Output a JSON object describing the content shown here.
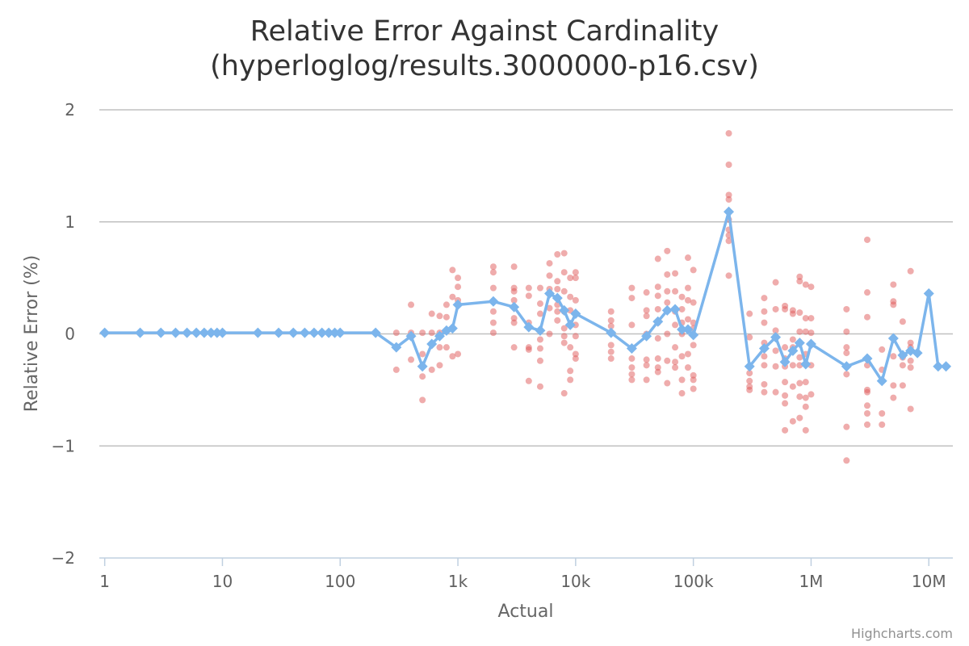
{
  "chart_data": {
    "type": "scatter",
    "title": "Relative Error Against Cardinality",
    "subtitle": "(hyperloglog/results.3000000-p16.csv)",
    "xlabel": "Actual",
    "ylabel": "Relative Error (%)",
    "x_scale": "log",
    "xlim": [
      0.9,
      16000000
    ],
    "ylim": [
      -2,
      2
    ],
    "grid": true,
    "credits": "Highcharts.com",
    "x_ticks": [
      {
        "value": 1,
        "label": "1"
      },
      {
        "value": 10,
        "label": "10"
      },
      {
        "value": 100,
        "label": "100"
      },
      {
        "value": 1000,
        "label": "1k"
      },
      {
        "value": 10000,
        "label": "10k"
      },
      {
        "value": 100000,
        "label": "100k"
      },
      {
        "value": 1000000,
        "label": "1M"
      },
      {
        "value": 10000000,
        "label": "10M"
      }
    ],
    "y_ticks": [
      {
        "value": 2,
        "label": "2"
      },
      {
        "value": 1,
        "label": "1"
      },
      {
        "value": 0,
        "label": "0"
      },
      {
        "value": -1,
        "label": "−1"
      },
      {
        "value": -2,
        "label": "−2"
      }
    ],
    "colors": {
      "scatter": "#e05a5a",
      "mean_line": "#7cb5ec",
      "grid": "#c0c0c0",
      "axis": "#c0d0e0"
    },
    "series": [
      {
        "kind": "mean",
        "x": [
          1,
          2,
          3,
          4,
          5,
          6,
          7,
          8,
          9,
          10,
          20,
          30,
          40,
          50,
          60,
          70,
          80,
          90,
          100,
          200,
          300,
          400,
          500,
          600,
          700,
          800,
          900,
          1000,
          2000,
          3000,
          4000,
          5000,
          6000,
          7000,
          8000,
          9000,
          10000,
          20000,
          30000,
          40000,
          50000,
          60000,
          70000,
          80000,
          90000,
          100000,
          200000,
          300000,
          400000,
          500000,
          600000,
          700000,
          800000,
          900000,
          1000000,
          2000000,
          3000000,
          4000000,
          5000000,
          6000000,
          7000000,
          8000000,
          10000000,
          12000000,
          14000000
        ],
        "y": [
          0.01,
          0.01,
          0.01,
          0.01,
          0.01,
          0.01,
          0.01,
          0.01,
          0.01,
          0.01,
          0.01,
          0.01,
          0.01,
          0.01,
          0.01,
          0.01,
          0.01,
          0.01,
          0.01,
          0.01,
          -0.12,
          -0.02,
          -0.29,
          -0.09,
          -0.02,
          0.03,
          0.05,
          0.26,
          0.29,
          0.24,
          0.06,
          0.03,
          0.36,
          0.32,
          0.21,
          0.08,
          0.18,
          0.01,
          -0.13,
          -0.02,
          0.11,
          0.21,
          0.22,
          0.04,
          0.04,
          -0.01,
          1.09,
          -0.29,
          -0.13,
          -0.03,
          -0.25,
          -0.15,
          -0.08,
          -0.27,
          -0.09,
          -0.29,
          -0.22,
          -0.42,
          -0.04,
          -0.19,
          -0.15,
          -0.17,
          0.36,
          -0.29,
          -0.29
        ]
      },
      {
        "kind": "samples",
        "points": [
          [
            300,
            0.01
          ],
          [
            300,
            -0.32
          ],
          [
            400,
            0.01
          ],
          [
            400,
            0.26
          ],
          [
            400,
            -0.23
          ],
          [
            500,
            0.01
          ],
          [
            500,
            -0.38
          ],
          [
            500,
            -0.59
          ],
          [
            500,
            -0.18
          ],
          [
            600,
            0.01
          ],
          [
            600,
            0.18
          ],
          [
            600,
            -0.32
          ],
          [
            700,
            0.01
          ],
          [
            700,
            0.16
          ],
          [
            700,
            -0.28
          ],
          [
            700,
            -0.12
          ],
          [
            800,
            0.26
          ],
          [
            800,
            0.15
          ],
          [
            800,
            -0.12
          ],
          [
            800,
            0.03
          ],
          [
            900,
            0.57
          ],
          [
            900,
            0.33
          ],
          [
            900,
            -0.2
          ],
          [
            900,
            0.05
          ],
          [
            1000,
            0.5
          ],
          [
            1000,
            0.42
          ],
          [
            1000,
            0.3
          ],
          [
            1000,
            -0.18
          ],
          [
            2000,
            0.6
          ],
          [
            2000,
            0.55
          ],
          [
            2000,
            0.41
          ],
          [
            2000,
            0.2
          ],
          [
            2000,
            0.1
          ],
          [
            2000,
            0.01
          ],
          [
            3000,
            0.6
          ],
          [
            3000,
            0.41
          ],
          [
            3000,
            0.38
          ],
          [
            3000,
            0.3
          ],
          [
            3000,
            0.14
          ],
          [
            3000,
            0.1
          ],
          [
            3000,
            -0.12
          ],
          [
            4000,
            0.41
          ],
          [
            4000,
            0.34
          ],
          [
            4000,
            0.1
          ],
          [
            4000,
            -0.12
          ],
          [
            4000,
            -0.14
          ],
          [
            4000,
            -0.42
          ],
          [
            5000,
            0.41
          ],
          [
            5000,
            0.27
          ],
          [
            5000,
            0.18
          ],
          [
            5000,
            -0.05
          ],
          [
            5000,
            -0.13
          ],
          [
            5000,
            -0.24
          ],
          [
            5000,
            -0.47
          ],
          [
            6000,
            0.63
          ],
          [
            6000,
            0.52
          ],
          [
            6000,
            0.4
          ],
          [
            6000,
            0.23
          ],
          [
            6000,
            0.0
          ],
          [
            7000,
            0.71
          ],
          [
            7000,
            0.47
          ],
          [
            7000,
            0.4
          ],
          [
            7000,
            0.26
          ],
          [
            7000,
            0.2
          ],
          [
            7000,
            0.12
          ],
          [
            8000,
            0.72
          ],
          [
            8000,
            0.55
          ],
          [
            8000,
            0.38
          ],
          [
            8000,
            0.2
          ],
          [
            8000,
            0.05
          ],
          [
            8000,
            -0.02
          ],
          [
            8000,
            -0.08
          ],
          [
            8000,
            -0.53
          ],
          [
            9000,
            0.5
          ],
          [
            9000,
            0.33
          ],
          [
            9000,
            0.21
          ],
          [
            9000,
            -0.12
          ],
          [
            9000,
            -0.33
          ],
          [
            9000,
            -0.41
          ],
          [
            10000,
            0.55
          ],
          [
            10000,
            0.5
          ],
          [
            10000,
            0.3
          ],
          [
            10000,
            0.08
          ],
          [
            10000,
            -0.02
          ],
          [
            10000,
            -0.18
          ],
          [
            10000,
            -0.22
          ],
          [
            20000,
            0.2
          ],
          [
            20000,
            0.12
          ],
          [
            20000,
            0.07
          ],
          [
            20000,
            -0.1
          ],
          [
            20000,
            -0.16
          ],
          [
            20000,
            -0.22
          ],
          [
            30000,
            0.41
          ],
          [
            30000,
            0.32
          ],
          [
            30000,
            0.08
          ],
          [
            30000,
            -0.22
          ],
          [
            30000,
            -0.3
          ],
          [
            30000,
            -0.36
          ],
          [
            30000,
            -0.41
          ],
          [
            40000,
            0.37
          ],
          [
            40000,
            0.21
          ],
          [
            40000,
            0.16
          ],
          [
            40000,
            0.0
          ],
          [
            40000,
            -0.23
          ],
          [
            40000,
            -0.28
          ],
          [
            40000,
            -0.41
          ],
          [
            50000,
            0.67
          ],
          [
            50000,
            0.42
          ],
          [
            50000,
            0.34
          ],
          [
            50000,
            0.22
          ],
          [
            50000,
            0.1
          ],
          [
            50000,
            -0.04
          ],
          [
            50000,
            -0.22
          ],
          [
            50000,
            -0.3
          ],
          [
            50000,
            -0.34
          ],
          [
            60000,
            0.74
          ],
          [
            60000,
            0.53
          ],
          [
            60000,
            0.38
          ],
          [
            60000,
            0.28
          ],
          [
            60000,
            0.0
          ],
          [
            60000,
            -0.24
          ],
          [
            60000,
            -0.44
          ],
          [
            70000,
            0.54
          ],
          [
            70000,
            0.38
          ],
          [
            70000,
            0.2
          ],
          [
            70000,
            0.08
          ],
          [
            70000,
            -0.12
          ],
          [
            70000,
            -0.25
          ],
          [
            70000,
            -0.3
          ],
          [
            80000,
            0.33
          ],
          [
            80000,
            0.22
          ],
          [
            80000,
            0.1
          ],
          [
            80000,
            0.0
          ],
          [
            80000,
            -0.2
          ],
          [
            80000,
            -0.41
          ],
          [
            80000,
            -0.53
          ],
          [
            90000,
            0.68
          ],
          [
            90000,
            0.41
          ],
          [
            90000,
            0.3
          ],
          [
            90000,
            0.13
          ],
          [
            90000,
            0.04
          ],
          [
            90000,
            -0.18
          ],
          [
            90000,
            -0.3
          ],
          [
            100000,
            0.57
          ],
          [
            100000,
            0.28
          ],
          [
            100000,
            0.1
          ],
          [
            100000,
            0.05
          ],
          [
            100000,
            -0.1
          ],
          [
            100000,
            -0.37
          ],
          [
            100000,
            -0.41
          ],
          [
            100000,
            -0.49
          ],
          [
            200000,
            1.79
          ],
          [
            200000,
            1.51
          ],
          [
            200000,
            1.24
          ],
          [
            200000,
            1.2
          ],
          [
            200000,
            1.02
          ],
          [
            200000,
            0.93
          ],
          [
            200000,
            0.88
          ],
          [
            200000,
            0.83
          ],
          [
            200000,
            0.52
          ],
          [
            300000,
            0.18
          ],
          [
            300000,
            -0.03
          ],
          [
            300000,
            -0.35
          ],
          [
            300000,
            -0.42
          ],
          [
            300000,
            -0.47
          ],
          [
            300000,
            -0.5
          ],
          [
            400000,
            0.32
          ],
          [
            400000,
            0.2
          ],
          [
            400000,
            0.1
          ],
          [
            400000,
            -0.08
          ],
          [
            400000,
            -0.2
          ],
          [
            400000,
            -0.28
          ],
          [
            400000,
            -0.45
          ],
          [
            400000,
            -0.52
          ],
          [
            500000,
            0.46
          ],
          [
            500000,
            0.22
          ],
          [
            500000,
            0.03
          ],
          [
            500000,
            -0.03
          ],
          [
            500000,
            -0.15
          ],
          [
            500000,
            -0.29
          ],
          [
            500000,
            -0.52
          ],
          [
            600000,
            0.25
          ],
          [
            600000,
            0.22
          ],
          [
            600000,
            -0.12
          ],
          [
            600000,
            -0.22
          ],
          [
            600000,
            -0.29
          ],
          [
            600000,
            -0.43
          ],
          [
            600000,
            -0.55
          ],
          [
            600000,
            -0.62
          ],
          [
            600000,
            -0.86
          ],
          [
            700000,
            0.21
          ],
          [
            700000,
            0.18
          ],
          [
            700000,
            -0.05
          ],
          [
            700000,
            -0.12
          ],
          [
            700000,
            -0.28
          ],
          [
            700000,
            -0.47
          ],
          [
            700000,
            -0.78
          ],
          [
            800000,
            0.51
          ],
          [
            800000,
            0.47
          ],
          [
            800000,
            0.19
          ],
          [
            800000,
            0.02
          ],
          [
            800000,
            -0.21
          ],
          [
            800000,
            -0.28
          ],
          [
            800000,
            -0.44
          ],
          [
            800000,
            -0.56
          ],
          [
            800000,
            -0.75
          ],
          [
            900000,
            0.44
          ],
          [
            900000,
            0.14
          ],
          [
            900000,
            0.02
          ],
          [
            900000,
            -0.18
          ],
          [
            900000,
            -0.27
          ],
          [
            900000,
            -0.43
          ],
          [
            900000,
            -0.57
          ],
          [
            900000,
            -0.65
          ],
          [
            900000,
            -0.86
          ],
          [
            1000000,
            0.42
          ],
          [
            1000000,
            0.14
          ],
          [
            1000000,
            0.01
          ],
          [
            1000000,
            -0.28
          ],
          [
            1000000,
            -0.54
          ],
          [
            2000000,
            0.22
          ],
          [
            2000000,
            0.02
          ],
          [
            2000000,
            -0.12
          ],
          [
            2000000,
            -0.17
          ],
          [
            2000000,
            -0.36
          ],
          [
            2000000,
            -0.83
          ],
          [
            2000000,
            -1.13
          ],
          [
            3000000,
            0.84
          ],
          [
            3000000,
            0.37
          ],
          [
            3000000,
            0.15
          ],
          [
            3000000,
            -0.28
          ],
          [
            3000000,
            -0.5
          ],
          [
            3000000,
            -0.52
          ],
          [
            3000000,
            -0.64
          ],
          [
            3000000,
            -0.71
          ],
          [
            3000000,
            -0.81
          ],
          [
            4000000,
            -0.14
          ],
          [
            4000000,
            -0.32
          ],
          [
            4000000,
            -0.71
          ],
          [
            4000000,
            -0.81
          ],
          [
            5000000,
            0.44
          ],
          [
            5000000,
            0.29
          ],
          [
            5000000,
            0.26
          ],
          [
            5000000,
            -0.2
          ],
          [
            5000000,
            -0.46
          ],
          [
            5000000,
            -0.57
          ],
          [
            6000000,
            0.11
          ],
          [
            6000000,
            -0.21
          ],
          [
            6000000,
            -0.28
          ],
          [
            6000000,
            -0.46
          ],
          [
            7000000,
            0.56
          ],
          [
            7000000,
            -0.08
          ],
          [
            7000000,
            -0.12
          ],
          [
            7000000,
            -0.24
          ],
          [
            7000000,
            -0.3
          ],
          [
            7000000,
            -0.67
          ]
        ]
      }
    ]
  }
}
